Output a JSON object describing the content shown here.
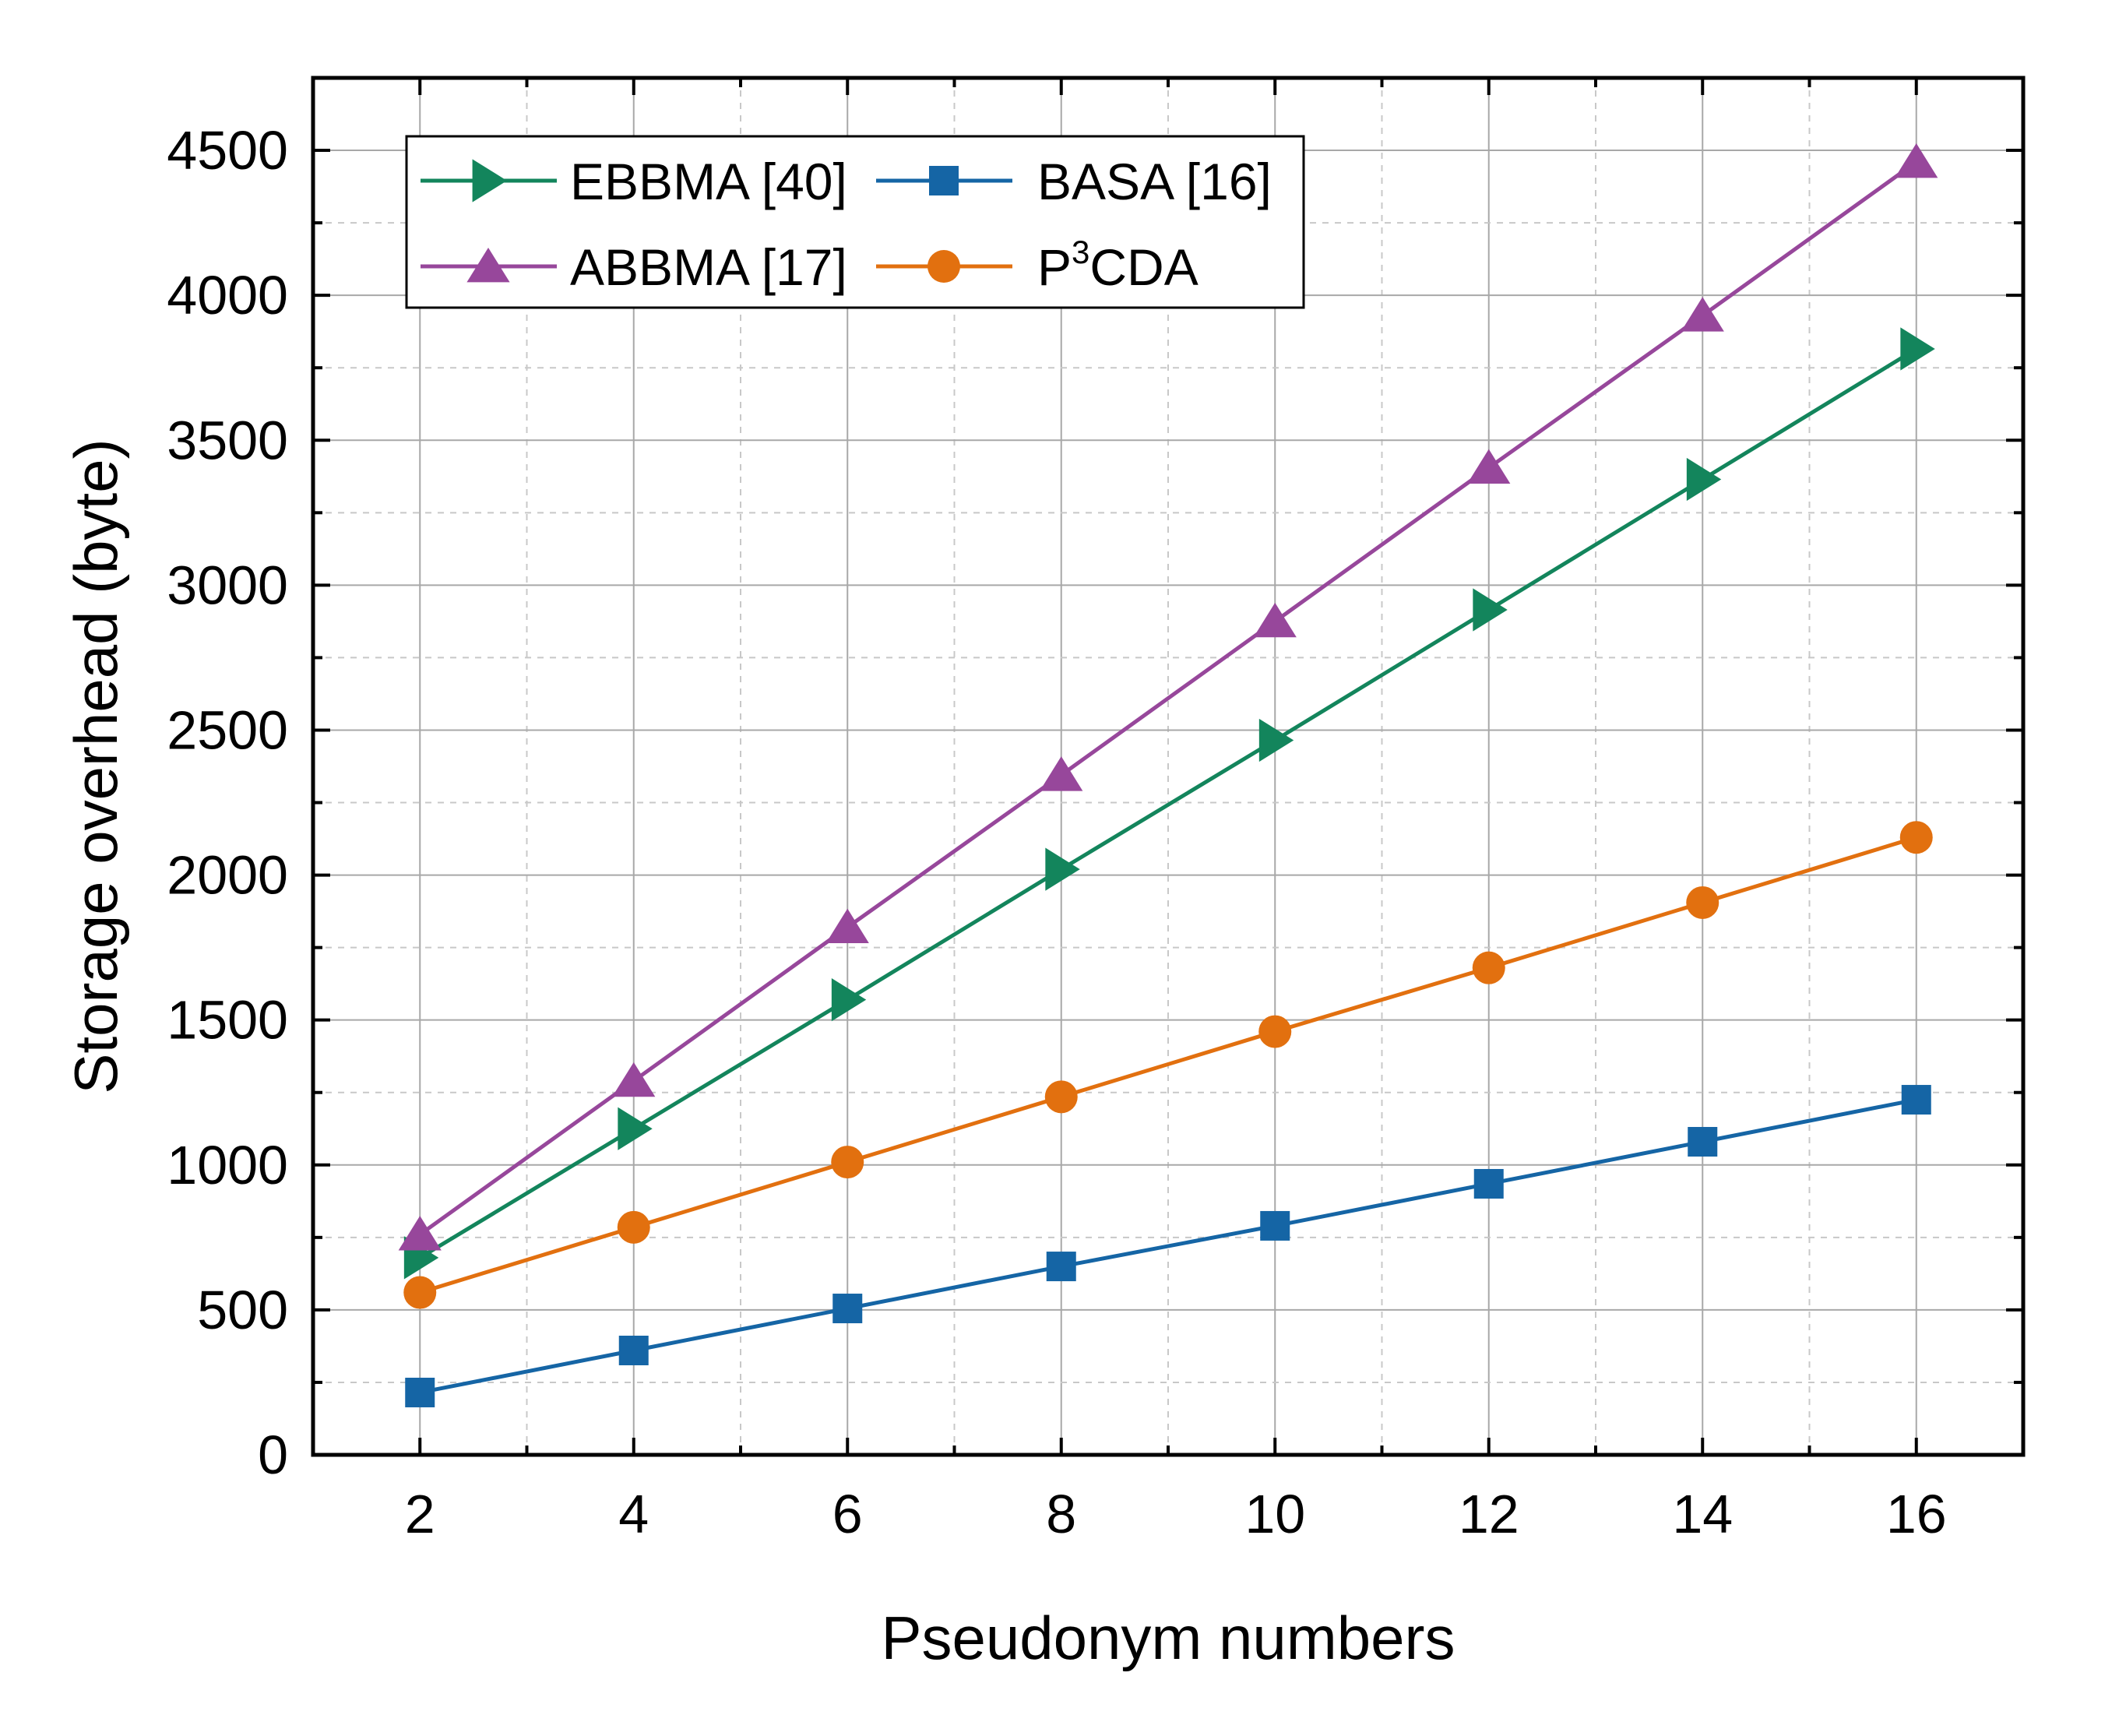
{
  "chart_data": {
    "type": "line",
    "title": "",
    "xlabel": "Pseudonym numbers",
    "ylabel": "Storage overhead (byte)",
    "x": [
      2,
      4,
      6,
      8,
      10,
      12,
      14,
      16
    ],
    "xlim": [
      1,
      17
    ],
    "ylim": [
      0,
      4750
    ],
    "xticks": [
      2,
      4,
      6,
      8,
      10,
      12,
      14,
      16
    ],
    "yticks": [
      0,
      500,
      1000,
      1500,
      2000,
      2500,
      3000,
      3500,
      4000,
      4500
    ],
    "grid": true,
    "legend_position": "top-left",
    "series": [
      {
        "name": "EBBMA [40]",
        "marker": "triangle-right",
        "color": "#13855c",
        "values": [
          680,
          1125,
          1570,
          2020,
          2465,
          2915,
          3365,
          3815
        ]
      },
      {
        "name": "BASA [16]",
        "marker": "square",
        "color": "#1565a5",
        "values": [
          215,
          360,
          505,
          650,
          790,
          935,
          1080,
          1225
        ]
      },
      {
        "name": "ABBMA [17]",
        "marker": "triangle-up",
        "color": "#97479b",
        "values": [
          760,
          1290,
          1820,
          2345,
          2875,
          3405,
          3930,
          4460
        ]
      },
      {
        "name": "P3CDA",
        "name_parts": [
          "P",
          "3",
          "CDA"
        ],
        "marker": "circle",
        "color": "#e2700f",
        "values": [
          560,
          785,
          1010,
          1235,
          1460,
          1680,
          1905,
          2130
        ]
      }
    ]
  }
}
